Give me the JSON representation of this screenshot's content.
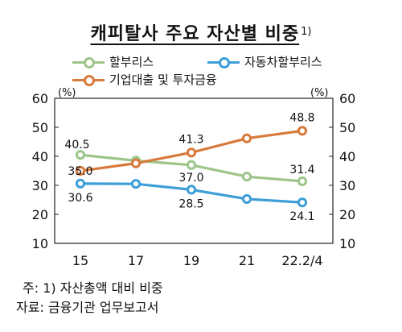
{
  "title": "캐피탈사 주요 자산별 비중",
  "title_sup": "1)",
  "chart_data": {
    "type": "line",
    "categories": [
      "15",
      "17",
      "19",
      "21",
      "22.2/4"
    ],
    "series": [
      {
        "name": "할부리스",
        "color": "#9dc58a",
        "values": [
          40.5,
          38.5,
          37.0,
          33.0,
          31.4
        ],
        "labels": [
          "40.5",
          "",
          "37.0",
          "",
          "31.4"
        ]
      },
      {
        "name": "자동차할부리스",
        "color": "#3d9ed8",
        "values": [
          30.6,
          30.5,
          28.5,
          25.3,
          24.1
        ],
        "labels": [
          "30.6",
          "",
          "28.5",
          "",
          "24.1"
        ]
      },
      {
        "name": "기업대출 및 투자금융",
        "color": "#d77a3c",
        "values": [
          35.0,
          37.6,
          41.3,
          46.2,
          48.8
        ],
        "labels": [
          "35.0",
          "",
          "41.3",
          "",
          "48.8"
        ]
      }
    ],
    "ylim": [
      10,
      60
    ],
    "yticks": [
      "10",
      "20",
      "30",
      "40",
      "50",
      "60"
    ],
    "unit_left": "(%)",
    "unit_right": "(%)"
  },
  "footnotes": {
    "note": "주: 1) 자산총액 대비 비중",
    "source": "자료: 금융기관 업무보고서"
  }
}
